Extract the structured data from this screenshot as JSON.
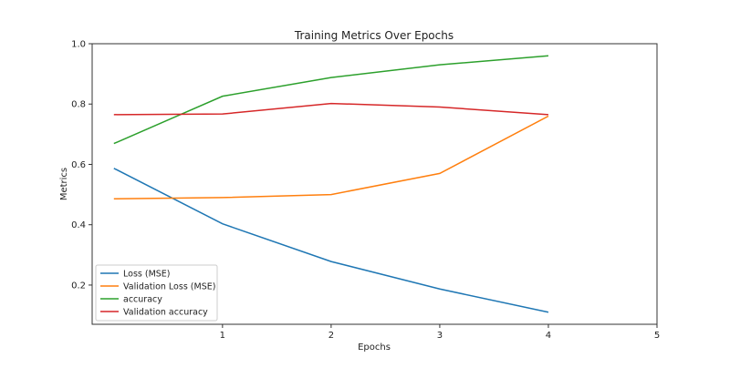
{
  "chart_data": {
    "type": "line",
    "title": "Training Metrics Over Epochs",
    "xlabel": "Epochs",
    "ylabel": "Metrics",
    "x": [
      0,
      1,
      2,
      3,
      4
    ],
    "xlim": [
      -0.2,
      5
    ],
    "ylim": [
      0.07,
      1.0
    ],
    "xticks": [
      1,
      2,
      3,
      4,
      5
    ],
    "yticks": [
      0.2,
      0.4,
      0.6,
      0.8,
      1.0
    ],
    "ytick_labels": [
      "0.2",
      "0.4",
      "0.6",
      "0.8",
      "1.0"
    ],
    "grid": false,
    "legend_position": "bottom-left",
    "series": [
      {
        "name": "Loss (MSE)",
        "color": "#1f77b4",
        "values": [
          0.587,
          0.403,
          0.278,
          0.187,
          0.11
        ]
      },
      {
        "name": "Validation Loss (MSE)",
        "color": "#ff7f0e",
        "values": [
          0.486,
          0.49,
          0.5,
          0.57,
          0.76
        ]
      },
      {
        "name": "accuracy",
        "color": "#2ca02c",
        "values": [
          0.669,
          0.826,
          0.888,
          0.93,
          0.96
        ]
      },
      {
        "name": "Validation accuracy",
        "color": "#d62728",
        "values": [
          0.765,
          0.767,
          0.802,
          0.79,
          0.765
        ]
      }
    ]
  }
}
